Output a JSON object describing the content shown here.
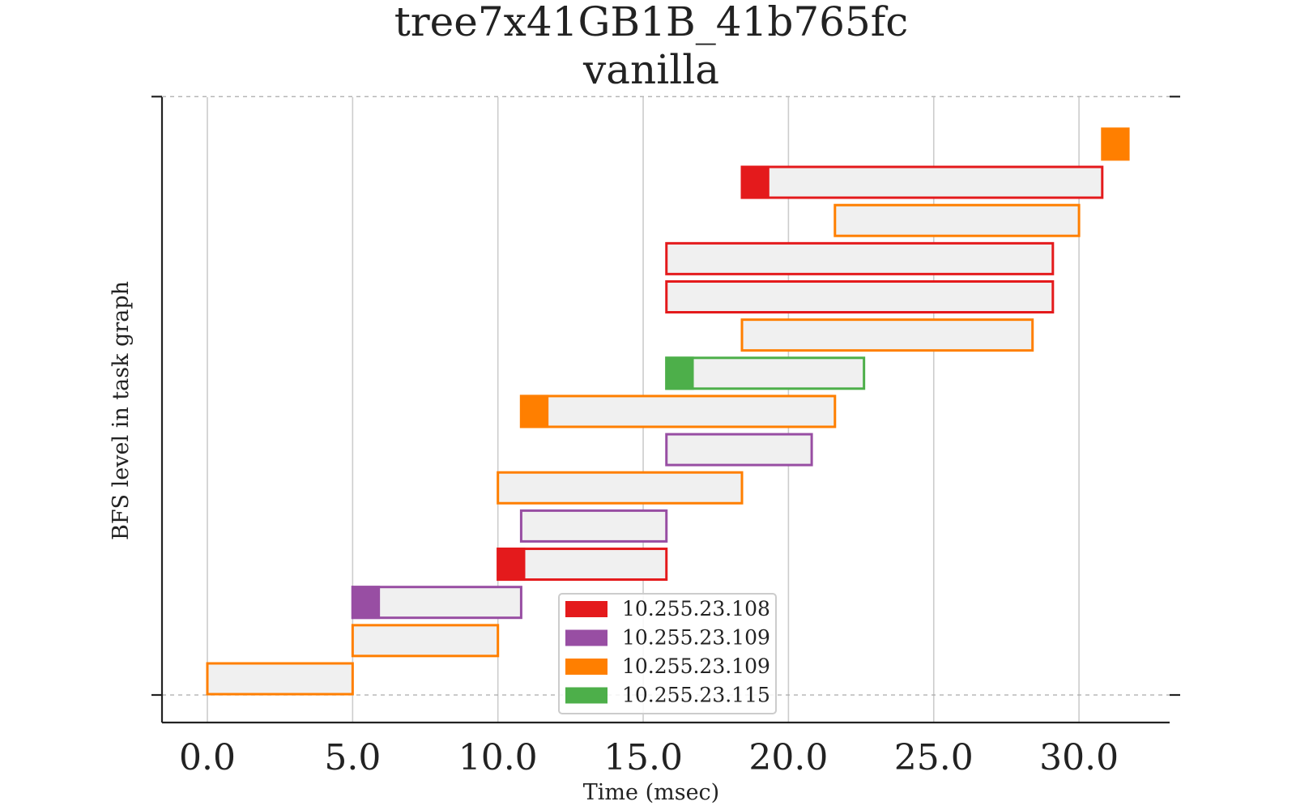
{
  "chart_data": {
    "type": "gantt",
    "title": "tree7x41GB1B_41b765fc",
    "subtitle": "vanilla",
    "xlabel": "Time (msec)",
    "ylabel": "BFS level in task graph",
    "xlim": [
      -1.55,
      33.2
    ],
    "xticks": [
      0,
      5,
      10,
      15,
      20,
      25,
      30
    ],
    "xtick_labels": [
      "0.0",
      "5.0",
      "10.0",
      "15.0",
      "20.0",
      "25.0",
      "30.0"
    ],
    "y_level_ticks": [
      0,
      3.33,
      6.67,
      10
    ],
    "grid": {
      "x": true,
      "y_dashed": true
    },
    "legend": {
      "placement": "bottom-center",
      "entries": [
        {
          "label": "10.255.23.108",
          "color": "#e41a1c"
        },
        {
          "label": "10.255.23.109",
          "color": "#984ea3"
        },
        {
          "label": "10.255.23.109",
          "color": "#ff7f00"
        },
        {
          "label": "10.255.23.115",
          "color": "#4daf4a"
        }
      ]
    },
    "tasks": [
      {
        "row": 0,
        "start": 0.0,
        "end": 5.0,
        "color": "#ff7f00",
        "head": 0
      },
      {
        "row": 1,
        "start": 5.0,
        "end": 10.0,
        "color": "#ff7f00",
        "head": 0
      },
      {
        "row": 2,
        "start": 5.0,
        "end": 10.8,
        "color": "#984ea3",
        "head": 0.9
      },
      {
        "row": 3,
        "start": 10.0,
        "end": 15.8,
        "color": "#e41a1c",
        "head": 0.9
      },
      {
        "row": 4,
        "start": 10.8,
        "end": 15.8,
        "color": "#984ea3",
        "head": 0
      },
      {
        "row": 5,
        "start": 10.0,
        "end": 18.4,
        "color": "#ff7f00",
        "head": 0
      },
      {
        "row": 6,
        "start": 15.8,
        "end": 20.8,
        "color": "#984ea3",
        "head": 0
      },
      {
        "row": 7,
        "start": 10.8,
        "end": 21.6,
        "color": "#ff7f00",
        "head": 0.9
      },
      {
        "row": 8,
        "start": 15.8,
        "end": 22.6,
        "color": "#4daf4a",
        "head": 0.9
      },
      {
        "row": 9,
        "start": 18.4,
        "end": 28.4,
        "color": "#ff7f00",
        "head": 0
      },
      {
        "row": 10,
        "start": 15.8,
        "end": 29.1,
        "color": "#e41a1c",
        "head": 0
      },
      {
        "row": 11,
        "start": 15.8,
        "end": 29.1,
        "color": "#e41a1c",
        "head": 0
      },
      {
        "row": 12,
        "start": 21.6,
        "end": 30.0,
        "color": "#ff7f00",
        "head": 0
      },
      {
        "row": 13,
        "start": 18.4,
        "end": 30.8,
        "color": "#e41a1c",
        "head": 0.9
      },
      {
        "row": 14,
        "start": 30.8,
        "end": 31.7,
        "color": "#ff7f00",
        "head": 0.9
      }
    ]
  }
}
